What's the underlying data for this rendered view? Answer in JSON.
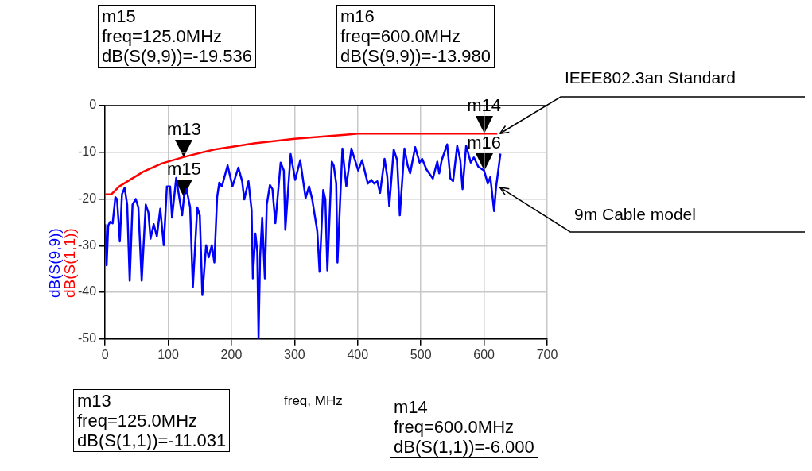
{
  "chart_data": {
    "type": "line",
    "xlabel": "freq, MHz",
    "xlim": [
      0,
      700
    ],
    "xticks": [
      0,
      100,
      200,
      300,
      400,
      500,
      600,
      700
    ],
    "ylim": [
      -50,
      0
    ],
    "yticks": [
      -50,
      -40,
      -30,
      -20,
      -10,
      0
    ],
    "grid": true,
    "legend": false,
    "marker": "none",
    "line_style": "solid",
    "series": [
      {
        "name": "dB(S(9,9))",
        "color": "#0000ff",
        "x": [
          0,
          2.5,
          5,
          8,
          12,
          16.3,
          19,
          23.4,
          26.8,
          31,
          35,
          39,
          43.5,
          48.5,
          52.7,
          58,
          64.4,
          68.6,
          72,
          77,
          82,
          87.4,
          92.9,
          97.9,
          103,
          106,
          112.6,
          118,
          122,
          125,
          129,
          134.7,
          139,
          146,
          150,
          154,
          160,
          164,
          169,
          173,
          177.4,
          180.8,
          185,
          194,
          201.7,
          211,
          217,
          220.4,
          227,
          232,
          234,
          238,
          241,
          243,
          245.4,
          248.8,
          253,
          256,
          261,
          265,
          269.6,
          278,
          283,
          285.4,
          293.8,
          301,
          309,
          317.5,
          323,
          328,
          332,
          336,
          339.6,
          345.4,
          348.8,
          352,
          359,
          362,
          366,
          368,
          375.8,
          382,
          390,
          400.8,
          407,
          416,
          421.7,
          426,
          431,
          435.4,
          442.5,
          446.7,
          450,
          457,
          462.5,
          466.7,
          474,
          479,
          483,
          491,
          498,
          502,
          509,
          519,
          526,
          529,
          533,
          541.7,
          546.7,
          551,
          557.5,
          562.5,
          566,
          571.7,
          579,
          584,
          591,
          600,
          606,
          610,
          616,
          619,
          626
        ],
        "values": [
          -25.4,
          -34.2,
          -25.7,
          -24.9,
          -25.2,
          -19.6,
          -20.1,
          -29.1,
          -19,
          -17.6,
          -21.2,
          -37.5,
          -21.2,
          -20,
          -21.8,
          -37.5,
          -21.2,
          -22.9,
          -28.5,
          -25.4,
          -28,
          -22.1,
          -29.9,
          -17.3,
          -17.3,
          -24,
          -15.5,
          -20.1,
          -23.5,
          -19.5,
          -17.9,
          -21.8,
          -38.9,
          -21.8,
          -23.5,
          -40.6,
          -29.9,
          -32.5,
          -29.9,
          -33.6,
          -19.6,
          -16.5,
          -17.3,
          -12.8,
          -17.3,
          -13.3,
          -16.2,
          -20.1,
          -16.2,
          -22.4,
          -37,
          -27.4,
          -31.3,
          -49.9,
          -32.5,
          -24,
          -37,
          -21.2,
          -17,
          -17.9,
          -25.2,
          -12.2,
          -13.9,
          -26.6,
          -10.4,
          -15.9,
          -11.7,
          -19.8,
          -17.3,
          -20.1,
          -23.5,
          -26.9,
          -35.6,
          -18.1,
          -20.1,
          -35.3,
          -12,
          -12.8,
          -16.7,
          -33.6,
          -9.2,
          -17.3,
          -9.2,
          -13.9,
          -11.7,
          -16.7,
          -15.9,
          -16.7,
          -16.2,
          -18.7,
          -11.4,
          -15.1,
          -21.5,
          -9.4,
          -11.7,
          -23.5,
          -9.2,
          -12.8,
          -14.5,
          -8.9,
          -12.2,
          -11.4,
          -13.7,
          -15.6,
          -12,
          -14.5,
          -11.7,
          -8.3,
          -15.6,
          -16.2,
          -8.6,
          -11.7,
          -17.9,
          -8.6,
          -12.2,
          -11.1,
          -13.1,
          -13.9,
          -16.7,
          -15.3,
          -22.6,
          -17.6,
          -10.3
        ]
      },
      {
        "name": "dB(S(1,1))",
        "color": "#ff0000",
        "x": [
          0,
          10,
          22.6,
          60,
          89.5,
          125,
          173,
          236,
          300,
          384,
          400,
          621
        ],
        "values": [
          -19,
          -19,
          -17.3,
          -14.2,
          -12.4,
          -11,
          -9.4,
          -8.1,
          -7.1,
          -6.2,
          -6,
          -6
        ]
      }
    ],
    "annotations": [
      {
        "text": "m13",
        "x": 125,
        "y": -11.031
      },
      {
        "text": "m14",
        "x": 600,
        "y": -6
      },
      {
        "text": "m15",
        "x": 125,
        "y": -19.536
      },
      {
        "text": "m16",
        "x": 600,
        "y": -13.98
      },
      {
        "text": "IEEE802.3an Standard",
        "x": 620,
        "y": -6
      },
      {
        "text": "9m Cable model",
        "x": 620,
        "y": -17.5
      },
      "m15\nfreq=125.0MHz\ndB(S(9,9))=-19.536",
      "m16\nfreq=600.0MHz\ndB(S(9,9))=-13.980",
      "m13\nfreq=125.0MHz\ndB(S(1,1))=-11.031",
      "m14\nfreq=600.0MHz\ndB(S(1,1))=-6.000"
    ]
  }
}
